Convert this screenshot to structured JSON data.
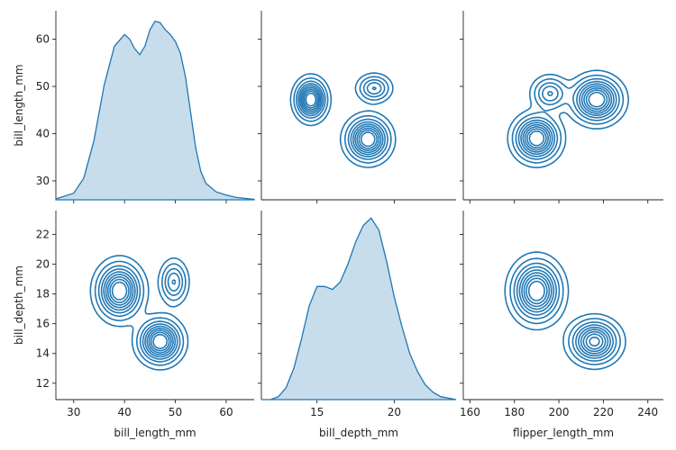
{
  "chart_data": {
    "type": "pairgrid-kde",
    "variables": [
      "bill_length_mm",
      "bill_depth_mm",
      "flipper_length_mm"
    ],
    "rows": [
      {
        "ylabel": "bill_length_mm",
        "ylim": [
          26,
          66
        ],
        "yticks": [
          30,
          40,
          50,
          60
        ]
      },
      {
        "ylabel": "bill_depth_mm",
        "ylim": [
          10.9,
          23.6
        ],
        "yticks": [
          12,
          14,
          16,
          18,
          20,
          22
        ]
      }
    ],
    "cols": [
      {
        "xlabel": "bill_length_mm",
        "xlim": [
          26.5,
          65.5
        ],
        "xticks": [
          30,
          40,
          50,
          60
        ]
      },
      {
        "xlabel": "bill_depth_mm",
        "xlim": [
          11.4,
          24.0
        ],
        "xticks": [
          15,
          20
        ]
      },
      {
        "xlabel": "flipper_length_mm",
        "xlim": [
          157,
          247
        ],
        "xticks": [
          160,
          180,
          200,
          220,
          240
        ]
      }
    ],
    "diagonals": [
      {
        "row": 0,
        "col": 0,
        "kind": "kde",
        "variable": "bill_length_mm",
        "x": [
          26.5,
          30,
          32,
          34,
          36,
          38,
          40,
          41,
          42,
          43,
          44,
          45,
          46,
          47,
          48,
          49,
          50,
          51,
          52,
          53,
          54,
          55,
          56,
          58,
          60,
          62,
          65.5
        ],
        "y": [
          26.2,
          27.4,
          30.6,
          38.6,
          50.3,
          58.5,
          61.0,
          60.0,
          58.0,
          56.7,
          58.5,
          62.0,
          63.8,
          63.5,
          62.0,
          61.0,
          59.5,
          57.0,
          52.0,
          44.5,
          37.0,
          32.0,
          29.5,
          27.7,
          27.0,
          26.5,
          26.1
        ]
      },
      {
        "row": 1,
        "col": 1,
        "kind": "kde",
        "variable": "bill_depth_mm",
        "x": [
          11.4,
          12.0,
          12.5,
          13.0,
          13.5,
          14.0,
          14.5,
          15.0,
          15.5,
          16.0,
          16.5,
          17.0,
          17.5,
          18.0,
          18.5,
          19.0,
          19.5,
          20.0,
          20.5,
          21.0,
          21.5,
          22.0,
          22.5,
          23.0,
          24.0
        ],
        "y": [
          10.9,
          10.9,
          11.1,
          11.7,
          13.0,
          15.0,
          17.2,
          18.5,
          18.5,
          18.3,
          18.8,
          20.0,
          21.5,
          22.6,
          23.1,
          22.3,
          20.2,
          17.8,
          15.8,
          14.0,
          12.8,
          11.9,
          11.4,
          11.1,
          10.9
        ]
      }
    ],
    "bivariate": [
      {
        "row": 0,
        "col": 1,
        "kind": "kde-contour",
        "x": "bill_depth_mm",
        "y": "bill_length_mm",
        "modes": [
          {
            "cx": 14.6,
            "cy": 47.2,
            "sx": 0.55,
            "sy": 2.3,
            "w": 1.0
          },
          {
            "cx": 18.3,
            "cy": 38.8,
            "sx": 0.75,
            "sy": 2.5,
            "w": 1.0
          },
          {
            "cx": 18.7,
            "cy": 49.6,
            "sx": 0.6,
            "sy": 1.6,
            "w": 0.45
          }
        ],
        "levels": [
          0.06,
          0.14,
          0.24,
          0.34,
          0.44,
          0.54,
          0.64,
          0.74,
          0.84
        ]
      },
      {
        "row": 0,
        "col": 2,
        "kind": "kde-contour",
        "x": "flipper_length_mm",
        "y": "bill_length_mm",
        "modes": [
          {
            "cx": 190,
            "cy": 39.0,
            "sx": 5.5,
            "sy": 2.6,
            "w": 1.0
          },
          {
            "cx": 217,
            "cy": 47.2,
            "sx": 6.0,
            "sy": 2.6,
            "w": 1.0
          },
          {
            "cx": 196,
            "cy": 48.5,
            "sx": 4.5,
            "sy": 2.0,
            "w": 0.45
          }
        ],
        "levels": [
          0.06,
          0.14,
          0.24,
          0.34,
          0.44,
          0.54,
          0.64,
          0.74,
          0.84
        ]
      },
      {
        "row": 1,
        "col": 0,
        "kind": "kde-contour",
        "x": "bill_length_mm",
        "y": "bill_depth_mm",
        "modes": [
          {
            "cx": 39.0,
            "cy": 18.2,
            "sx": 2.4,
            "sy": 1.0,
            "w": 1.0
          },
          {
            "cx": 47.0,
            "cy": 14.8,
            "sx": 2.3,
            "sy": 0.8,
            "w": 1.0
          },
          {
            "cx": 49.7,
            "cy": 18.8,
            "sx": 1.5,
            "sy": 0.8,
            "w": 0.45
          }
        ],
        "levels": [
          0.06,
          0.14,
          0.24,
          0.34,
          0.44,
          0.54,
          0.64,
          0.74,
          0.84
        ]
      },
      {
        "row": 1,
        "col": 2,
        "kind": "kde-contour",
        "x": "flipper_length_mm",
        "y": "bill_depth_mm",
        "modes": [
          {
            "cx": 190,
            "cy": 18.2,
            "sx": 6.0,
            "sy": 1.1,
            "w": 1.0
          },
          {
            "cx": 216,
            "cy": 14.8,
            "sx": 6.0,
            "sy": 0.8,
            "w": 0.9
          }
        ],
        "levels": [
          0.06,
          0.14,
          0.24,
          0.34,
          0.44,
          0.54,
          0.64,
          0.74,
          0.84
        ]
      }
    ],
    "color": "#1f77b4",
    "grid": false
  }
}
